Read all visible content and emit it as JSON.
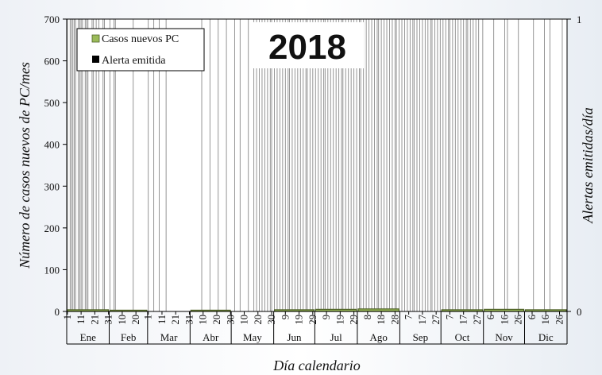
{
  "chart_data": {
    "type": "bar",
    "title": "2018",
    "xlabel": "Día calendario",
    "ylabel": "Número de casos nuevos de PC/mes",
    "y2label": "Alertas emitidas/día",
    "ylim": [
      0,
      700
    ],
    "y2lim": [
      0,
      1
    ],
    "yticks": [
      "0",
      "100",
      "200",
      "300",
      "400",
      "500",
      "600",
      "700"
    ],
    "y2ticks": [
      "0",
      "1"
    ],
    "legend_position": "top-left",
    "colors": {
      "cases": "#9bbb59",
      "alerts": "#000000"
    },
    "months": [
      {
        "name": "Ene",
        "days": 31,
        "ticks": [
          "1",
          "11",
          "21",
          "31"
        ],
        "cases": 4
      },
      {
        "name": "Feb",
        "days": 28,
        "ticks": [
          "10",
          "20"
        ],
        "cases": 3
      },
      {
        "name": "Mar",
        "days": 31,
        "ticks": [
          "1",
          "11",
          "21",
          "31"
        ],
        "cases": 0
      },
      {
        "name": "Abr",
        "days": 30,
        "ticks": [
          "10",
          "20",
          "30"
        ],
        "cases": 3
      },
      {
        "name": "May",
        "days": 31,
        "ticks": [
          "10",
          "20",
          "30"
        ],
        "cases": 0
      },
      {
        "name": "Jun",
        "days": 30,
        "ticks": [
          "9",
          "19",
          "29"
        ],
        "cases": 4
      },
      {
        "name": "Jul",
        "days": 31,
        "ticks": [
          "9",
          "19",
          "29"
        ],
        "cases": 5
      },
      {
        "name": "Ago",
        "days": 31,
        "ticks": [
          "8",
          "18",
          "28"
        ],
        "cases": 6
      },
      {
        "name": "Sep",
        "days": 30,
        "ticks": [
          "7",
          "17",
          "27"
        ],
        "cases": 0
      },
      {
        "name": "Oct",
        "days": 31,
        "ticks": [
          "7",
          "17",
          "27"
        ],
        "cases": 4
      },
      {
        "name": "Nov",
        "days": 30,
        "ticks": [
          "6",
          "16",
          "26"
        ],
        "cases": 5
      },
      {
        "name": "Dic",
        "days": 31,
        "ticks": [
          "6",
          "16",
          "26"
        ],
        "cases": 4
      }
    ],
    "series": [
      {
        "name": "Casos nuevos PC",
        "kind": "monthly_bar"
      },
      {
        "name": "Alerta emitida",
        "kind": "daily_alert",
        "alert_days": [
          1,
          3,
          4,
          5,
          6,
          7,
          9,
          10,
          11,
          12,
          14,
          15,
          16,
          19,
          20,
          22,
          24,
          27,
          28,
          32,
          35,
          36,
          49,
          60,
          64,
          68,
          73,
          99,
          105,
          111,
          117,
          123,
          127,
          133,
          137,
          139,
          141,
          143,
          145,
          147,
          149,
          150,
          152,
          154,
          156,
          158,
          160,
          162,
          163,
          165,
          167,
          169,
          171,
          173,
          175,
          176,
          178,
          180,
          182,
          184,
          186,
          188,
          189,
          191,
          193,
          195,
          197,
          199,
          201,
          202,
          204,
          206,
          208,
          210,
          212,
          214,
          215,
          217,
          219,
          221,
          223,
          225,
          227,
          228,
          230,
          232,
          234,
          236,
          238,
          240,
          241,
          243,
          245,
          247,
          249,
          251,
          253,
          254,
          256,
          258,
          260,
          262,
          264,
          266,
          267,
          269,
          271,
          273,
          275,
          277,
          279,
          280,
          282,
          284,
          286,
          288,
          290,
          292,
          293,
          295,
          297,
          299,
          301,
          304,
          312,
          320,
          322,
          330,
          341,
          349,
          353,
          362
        ]
      }
    ]
  }
}
